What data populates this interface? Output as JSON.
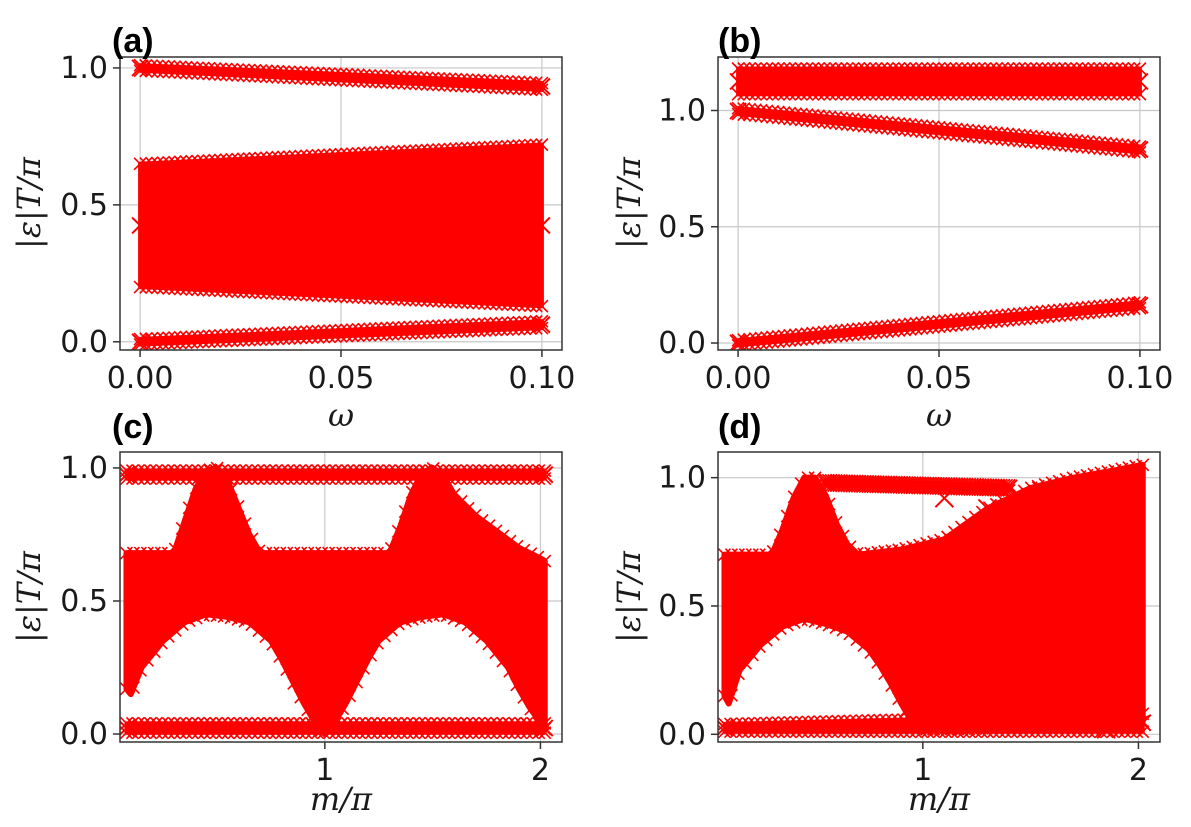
{
  "colors": {
    "marker": "#ff0000",
    "grid": "#c8c8c8",
    "axis": "#333333"
  },
  "chart_data": [
    {
      "label": "(a)",
      "type": "scatter",
      "marker": "x",
      "xlabel": "ω",
      "ylabel": "|ε|T/π",
      "xlim": [
        -0.005,
        0.105
      ],
      "ylim": [
        -0.03,
        1.04
      ],
      "xticks": [
        0,
        0.05,
        0.1
      ],
      "xtick_labels": [
        "0.00",
        "0.05",
        "0.10"
      ],
      "yticks": [
        0,
        0.5,
        1.0
      ],
      "ytick_labels": [
        "0.0",
        "0.5",
        "1.0"
      ],
      "grid": true,
      "bands": [
        {
          "name": "upper edge band",
          "x": [
            0,
            0.1
          ],
          "y_low": [
            0.99,
            0.92
          ],
          "y_high": [
            1.01,
            0.945
          ]
        },
        {
          "name": "bulk continuum",
          "x": [
            0,
            0.1
          ],
          "y_low": [
            0.2,
            0.13
          ],
          "y_high": [
            0.65,
            0.72
          ]
        },
        {
          "name": "lower edge band",
          "x": [
            0,
            0.1
          ],
          "y_low": [
            -0.01,
            0.05
          ],
          "y_high": [
            0.01,
            0.075
          ]
        }
      ]
    },
    {
      "label": "(b)",
      "type": "scatter",
      "marker": "x",
      "xlabel": "ω",
      "ylabel": "|ε|T/π",
      "xlim": [
        -0.005,
        0.105
      ],
      "ylim": [
        -0.03,
        1.23
      ],
      "xticks": [
        0,
        0.05,
        0.1
      ],
      "xtick_labels": [
        "0.00",
        "0.05",
        "0.10"
      ],
      "yticks": [
        0,
        0.5,
        1.0
      ],
      "ytick_labels": [
        "0.0",
        "0.5",
        "1.0"
      ],
      "grid": true,
      "bands": [
        {
          "name": "top flat band",
          "x": [
            0,
            0.1
          ],
          "y_low": [
            1.07,
            1.07
          ],
          "y_high": [
            1.18,
            1.18
          ]
        },
        {
          "name": "descending edge band",
          "x": [
            0,
            0.1
          ],
          "y_low": [
            0.985,
            0.82
          ],
          "y_high": [
            1.01,
            0.845
          ]
        },
        {
          "name": "ascending edge band",
          "x": [
            0,
            0.1
          ],
          "y_low": [
            -0.01,
            0.15
          ],
          "y_high": [
            0.012,
            0.175
          ]
        }
      ]
    },
    {
      "label": "(c)",
      "type": "scatter",
      "marker": "x",
      "xlabel": "m/π",
      "ylabel": "|ε|T/π",
      "xlim": [
        0.05,
        2.1
      ],
      "ylim": [
        -0.03,
        1.06
      ],
      "xticks": [
        1,
        2
      ],
      "xtick_labels": [
        "1",
        "2"
      ],
      "yticks": [
        0,
        0.5,
        1.0
      ],
      "ytick_labels": [
        "0.0",
        "0.5",
        "1.0"
      ],
      "grid": true,
      "bands": [
        {
          "name": "top edge band",
          "x": [
            0.08,
            2.02
          ],
          "y_low": [
            0.96,
            0.96
          ],
          "y_high": [
            0.99,
            0.99
          ]
        },
        {
          "name": "bottom edge band",
          "x": [
            0.08,
            2.02
          ],
          "y_low": [
            0.005,
            0.005
          ],
          "y_high": [
            0.04,
            0.04
          ]
        }
      ],
      "bulk_regions": [
        {
          "name": "bulk lower boundary",
          "x": [
            0.08,
            0.1,
            0.15,
            0.25,
            0.35,
            0.45,
            0.55,
            0.65,
            0.75,
            0.8,
            0.85,
            0.9,
            0.95,
            1.0,
            1.05,
            1.1,
            1.15,
            1.2,
            1.25,
            1.35,
            1.45,
            1.55,
            1.65,
            1.75,
            1.85,
            1.9,
            1.95,
            2.02
          ],
          "y": [
            0.17,
            0.15,
            0.25,
            0.35,
            0.42,
            0.45,
            0.44,
            0.42,
            0.35,
            0.28,
            0.2,
            0.12,
            0.05,
            0.0,
            0.05,
            0.12,
            0.2,
            0.28,
            0.35,
            0.42,
            0.44,
            0.45,
            0.42,
            0.35,
            0.25,
            0.17,
            0.1,
            0.02
          ]
        },
        {
          "name": "bulk upper boundary",
          "x": [
            0.08,
            0.3,
            0.35,
            0.4,
            0.45,
            0.5,
            0.55,
            0.6,
            0.65,
            0.7,
            1.3,
            1.35,
            1.4,
            1.45,
            1.5,
            1.55,
            1.6,
            1.7,
            1.8,
            1.9,
            2.0,
            2.02
          ],
          "y": [
            0.68,
            0.68,
            0.8,
            0.92,
            0.99,
            1.0,
            0.95,
            0.85,
            0.75,
            0.68,
            0.68,
            0.78,
            0.9,
            0.98,
            1.0,
            0.97,
            0.9,
            0.82,
            0.76,
            0.7,
            0.66,
            0.65
          ]
        }
      ]
    },
    {
      "label": "(d)",
      "type": "scatter",
      "marker": "x",
      "xlabel": "m/π",
      "ylabel": "|ε|T/π",
      "xlim": [
        0.05,
        2.1
      ],
      "ylim": [
        -0.03,
        1.1
      ],
      "xticks": [
        1,
        2
      ],
      "xtick_labels": [
        "1",
        "2"
      ],
      "yticks": [
        0,
        0.5,
        1.0
      ],
      "ytick_labels": [
        "0.0",
        "0.5",
        "1.0"
      ],
      "grid": true,
      "bands": [
        {
          "name": "top edge band",
          "x": [
            0.55,
            1.4
          ],
          "y_low": [
            0.97,
            0.95
          ],
          "y_high": [
            0.99,
            0.97
          ]
        },
        {
          "name": "bottom edge band",
          "x": [
            0.08,
            2.02
          ],
          "y_low": [
            0.01,
            0.01
          ],
          "y_high": [
            0.04,
            0.08
          ]
        }
      ],
      "bulk_regions": [
        {
          "name": "bulk lower boundary",
          "x": [
            0.08,
            0.1,
            0.15,
            0.25,
            0.35,
            0.45,
            0.55,
            0.65,
            0.75,
            0.8,
            0.85,
            0.9,
            0.95,
            1.0,
            1.2,
            1.4,
            1.6,
            1.8,
            2.02
          ],
          "y": [
            0.15,
            0.12,
            0.25,
            0.35,
            0.42,
            0.45,
            0.43,
            0.4,
            0.33,
            0.27,
            0.2,
            0.12,
            0.05,
            0.02,
            0.02,
            0.03,
            0.04,
            0.05,
            0.05
          ]
        },
        {
          "name": "bulk upper boundary",
          "x": [
            0.08,
            0.3,
            0.35,
            0.4,
            0.45,
            0.5,
            0.55,
            0.6,
            0.65,
            0.7,
            0.9,
            1.1,
            1.3,
            1.5,
            1.7,
            1.9,
            2.02
          ],
          "y": [
            0.7,
            0.7,
            0.8,
            0.92,
            1.0,
            1.0,
            0.93,
            0.82,
            0.74,
            0.7,
            0.72,
            0.76,
            0.88,
            0.96,
            1.0,
            1.03,
            1.05
          ]
        }
      ],
      "scattered_points": [
        {
          "x": 1.1,
          "y": 0.92
        },
        {
          "x": 1.3,
          "y": 0.88
        },
        {
          "x": 1.45,
          "y": 0.9
        },
        {
          "x": 1.6,
          "y": 0.2
        },
        {
          "x": 1.75,
          "y": 0.05
        },
        {
          "x": 1.8,
          "y": 0.1
        },
        {
          "x": 1.5,
          "y": 0.12
        },
        {
          "x": 1.65,
          "y": 0.15
        },
        {
          "x": 1.85,
          "y": 0.02
        },
        {
          "x": 1.2,
          "y": 0.6
        },
        {
          "x": 1.4,
          "y": 0.7
        },
        {
          "x": 1.55,
          "y": 0.95
        }
      ]
    }
  ]
}
